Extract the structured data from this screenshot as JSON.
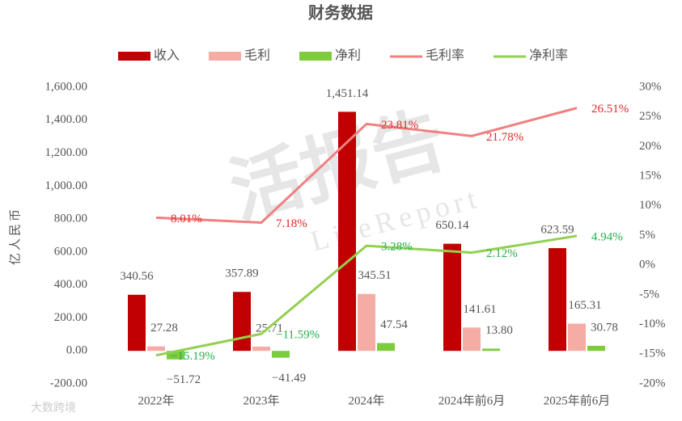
{
  "chart_data": {
    "type": "bar_line",
    "title": "财务数据",
    "y_label": "亿人民币",
    "watermarks": [
      "活报告",
      "LiteReport",
      "大数跨境"
    ],
    "categories": [
      "2022年",
      "2023年",
      "2024年",
      "2024年前6月",
      "2025年前6月"
    ],
    "series": [
      {
        "name": "收入",
        "type": "bar",
        "color": "#c00000",
        "values": [
          340.56,
          357.89,
          1451.14,
          650.14,
          623.59
        ],
        "value_labels": [
          "340.56",
          "357.89",
          "1,451.14",
          "650.14",
          "623.59"
        ]
      },
      {
        "name": "毛利",
        "type": "bar",
        "color": "#f5aca5",
        "values": [
          27.28,
          25.71,
          345.51,
          141.61,
          165.31
        ],
        "value_labels": [
          "27.28",
          "25.71",
          "345.51",
          "141.61",
          "165.31"
        ]
      },
      {
        "name": "净利",
        "type": "bar",
        "color": "#7ccc3c",
        "values": [
          -51.72,
          -41.49,
          47.54,
          13.8,
          30.78
        ],
        "value_labels": [
          "−51.72",
          "−41.49",
          "47.54",
          "13.80",
          "30.78"
        ]
      },
      {
        "name": "毛利率",
        "type": "line",
        "axis": "y2",
        "color": "#f08080",
        "label_color": "#e02828",
        "values": [
          8.01,
          7.18,
          23.81,
          21.78,
          26.51
        ],
        "value_labels": [
          "8.01%",
          "7.18%",
          "23.81%",
          "21.78%",
          "26.51%"
        ]
      },
      {
        "name": "净利率",
        "type": "line",
        "axis": "y2",
        "color": "#92d050",
        "label_color": "#22b04a",
        "values": [
          -15.19,
          -11.59,
          3.28,
          2.12,
          4.94
        ],
        "value_labels": [
          "−15.19%",
          "−11.59%",
          "3.28%",
          "2.12%",
          "4.94%"
        ]
      }
    ],
    "ylim": [
      -200,
      1600
    ],
    "yticks": [
      {
        "value": -200,
        "label": "-200.00"
      },
      {
        "value": 0,
        "label": "0.00"
      },
      {
        "value": 200,
        "label": "200.00"
      },
      {
        "value": 400,
        "label": "400.00"
      },
      {
        "value": 600,
        "label": "600.00"
      },
      {
        "value": 800,
        "label": "800.00"
      },
      {
        "value": 1000,
        "label": "1,000.00"
      },
      {
        "value": 1200,
        "label": "1,200.00"
      },
      {
        "value": 1400,
        "label": "1,400.00"
      },
      {
        "value": 1600,
        "label": "1,600.00"
      }
    ],
    "y2lim": [
      -20,
      30
    ],
    "y2ticks": [
      {
        "value": -20,
        "label": "-20%"
      },
      {
        "value": -15,
        "label": "-15%"
      },
      {
        "value": -10,
        "label": "-10%"
      },
      {
        "value": -5,
        "label": "-5%"
      },
      {
        "value": 0,
        "label": "0%"
      },
      {
        "value": 5,
        "label": "5%"
      },
      {
        "value": 10,
        "label": "10%"
      },
      {
        "value": 15,
        "label": "15%"
      },
      {
        "value": 20,
        "label": "20%"
      },
      {
        "value": 25,
        "label": "25%"
      },
      {
        "value": 30,
        "label": "30%"
      }
    ],
    "legend": "top"
  }
}
